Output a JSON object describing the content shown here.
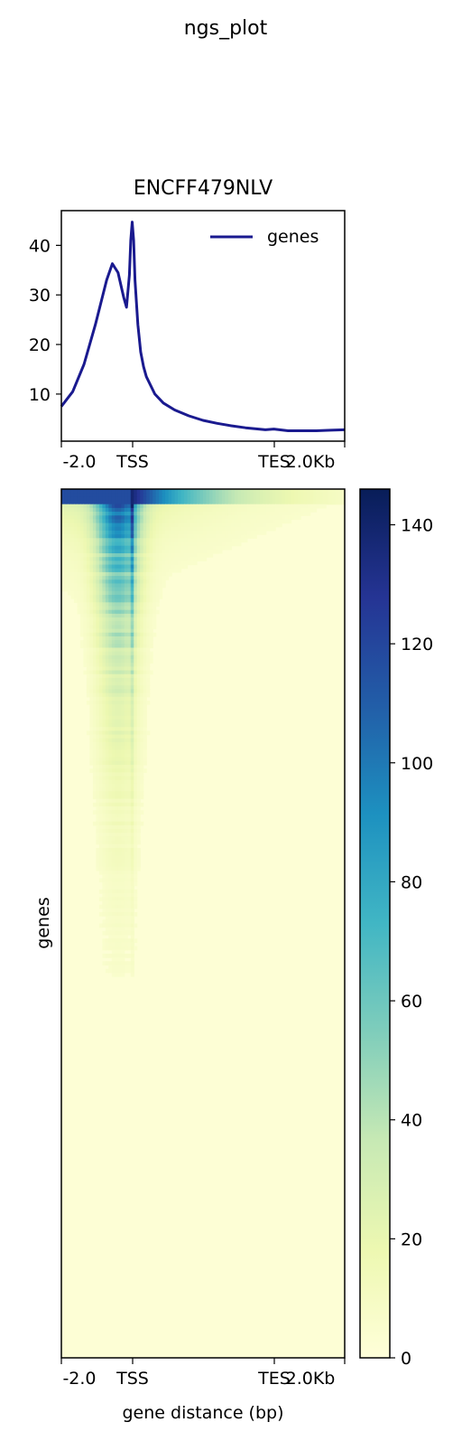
{
  "suptitle": "ngs_plot",
  "chart_data": [
    {
      "type": "line",
      "title": "ENCFF479NLV",
      "x_tick_labels": [
        "-2.0",
        "TSS",
        "TES",
        "2.0Kb"
      ],
      "ylim": [
        0.5,
        47.0
      ],
      "y_ticks": [
        10,
        20,
        30,
        40
      ],
      "legend": {
        "position": "top-right",
        "entries": [
          "genes"
        ]
      },
      "series": [
        {
          "name": "genes",
          "color": "#1a1a8f",
          "x": [
            0.0,
            0.04,
            0.08,
            0.12,
            0.16,
            0.18,
            0.2,
            0.22,
            0.23,
            0.24,
            0.245,
            0.25,
            0.255,
            0.26,
            0.27,
            0.28,
            0.29,
            0.3,
            0.33,
            0.36,
            0.4,
            0.45,
            0.5,
            0.55,
            0.6,
            0.65,
            0.7,
            0.72,
            0.75,
            0.8,
            0.85,
            0.9,
            0.95,
            1.0
          ],
          "values": [
            7.5,
            10.5,
            16.0,
            24.0,
            33.0,
            36.3,
            34.5,
            29.5,
            27.5,
            34.0,
            41.0,
            44.7,
            41.0,
            33.0,
            24.0,
            18.5,
            15.5,
            13.5,
            10.0,
            8.2,
            6.8,
            5.6,
            4.7,
            4.1,
            3.6,
            3.2,
            2.9,
            2.8,
            2.95,
            2.6,
            2.6,
            2.6,
            2.7,
            2.8
          ]
        }
      ]
    },
    {
      "type": "heatmap",
      "ylabel": "genes",
      "xlabel": "gene distance (bp)",
      "x_tick_labels": [
        "-2.0",
        "TSS",
        "TES",
        "2.0Kb"
      ],
      "colormap": "YlGnBu",
      "colorbar": {
        "min": 0,
        "max": 146,
        "ticks": [
          0,
          20,
          40,
          60,
          80,
          100,
          120,
          140
        ]
      }
    }
  ],
  "colors": {
    "colormap_stops": [
      "#ffffd9",
      "#edf8b1",
      "#c7e9b4",
      "#7fcdbb",
      "#41b6c4",
      "#1d91c0",
      "#225ea8",
      "#253494",
      "#081d58"
    ]
  }
}
